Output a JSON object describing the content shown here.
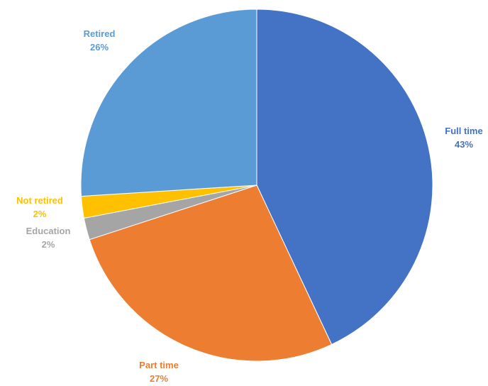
{
  "chart_data": {
    "type": "pie",
    "title": "",
    "slices": [
      {
        "label": "Full time",
        "value": 43,
        "value_label": "43%",
        "color": "#4472C4"
      },
      {
        "label": "Part time",
        "value": 27,
        "value_label": "27%",
        "color": "#ED7D31"
      },
      {
        "label": "Education",
        "value": 2,
        "value_label": "2%",
        "color": "#A5A5A5"
      },
      {
        "label": "Not retired",
        "value": 2,
        "value_label": "2%",
        "color": "#FFC000"
      },
      {
        "label": "Retired",
        "value": 26,
        "value_label": "26%",
        "color": "#5B9BD5"
      }
    ],
    "start_angle_deg": 0,
    "direction": "clockwise",
    "legend": "none",
    "data_labels": "outside"
  }
}
